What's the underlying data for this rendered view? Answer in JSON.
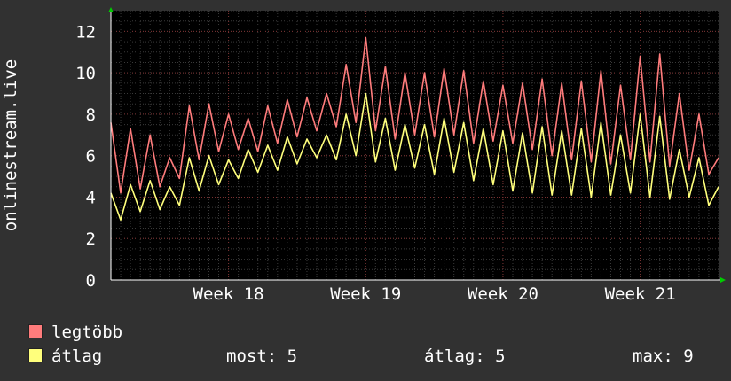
{
  "chart_data": {
    "type": "line",
    "ylabel": "onlinestream.live",
    "ylim": [
      0,
      13
    ],
    "yticks": [
      0,
      2,
      4,
      6,
      8,
      10,
      12
    ],
    "xlim": [
      0,
      31
    ],
    "xticks": [
      {
        "label": "Week 18",
        "x": 6
      },
      {
        "label": "Week 19",
        "x": 13
      },
      {
        "label": "Week 20",
        "x": 20
      },
      {
        "label": "Week 21",
        "x": 27
      }
    ],
    "grid": true,
    "series": [
      {
        "name": "legtöbb",
        "color": "#ff7c7c",
        "x": [
          0,
          0.5,
          1,
          1.5,
          2,
          2.5,
          3,
          3.5,
          4,
          4.5,
          5,
          5.5,
          6,
          6.5,
          7,
          7.5,
          8,
          8.5,
          9,
          9.5,
          10,
          10.5,
          11,
          11.5,
          12,
          12.5,
          13,
          13.5,
          14,
          14.5,
          15,
          15.5,
          16,
          16.5,
          17,
          17.5,
          18,
          18.5,
          19,
          19.5,
          20,
          20.5,
          21,
          21.5,
          22,
          22.5,
          23,
          23.5,
          24,
          24.5,
          25,
          25.5,
          26,
          26.5,
          27,
          27.5,
          28,
          28.5,
          29,
          29.5,
          30,
          30.5,
          31
        ],
        "values": [
          7.6,
          4.2,
          7.3,
          4.4,
          7.0,
          4.5,
          5.9,
          4.9,
          8.4,
          5.8,
          8.5,
          6.2,
          8.0,
          6.3,
          7.8,
          6.2,
          8.4,
          6.6,
          8.7,
          6.9,
          8.8,
          7.2,
          9.0,
          7.4,
          10.4,
          7.6,
          11.7,
          7.2,
          10.3,
          6.8,
          10.0,
          7.0,
          10.0,
          6.9,
          10.2,
          7.0,
          10.1,
          6.6,
          9.6,
          6.7,
          9.4,
          6.6,
          9.5,
          6.3,
          9.7,
          6.0,
          9.5,
          5.8,
          9.6,
          5.7,
          10.1,
          5.6,
          9.4,
          5.8,
          10.8,
          5.7,
          10.9,
          5.5,
          9.0,
          5.3,
          8.0,
          5.1,
          5.9
        ]
      },
      {
        "name": "átlag",
        "color": "#ffff7c",
        "x": [
          0,
          0.5,
          1,
          1.5,
          2,
          2.5,
          3,
          3.5,
          4,
          4.5,
          5,
          5.5,
          6,
          6.5,
          7,
          7.5,
          8,
          8.5,
          9,
          9.5,
          10,
          10.5,
          11,
          11.5,
          12,
          12.5,
          13,
          13.5,
          14,
          14.5,
          15,
          15.5,
          16,
          16.5,
          17,
          17.5,
          18,
          18.5,
          19,
          19.5,
          20,
          20.5,
          21,
          21.5,
          22,
          22.5,
          23,
          23.5,
          24,
          24.5,
          25,
          25.5,
          26,
          26.5,
          27,
          27.5,
          28,
          28.5,
          29,
          29.5,
          30,
          30.5,
          31
        ],
        "values": [
          4.2,
          2.9,
          4.6,
          3.3,
          4.8,
          3.4,
          4.5,
          3.6,
          5.9,
          4.3,
          6.0,
          4.6,
          5.8,
          4.9,
          6.3,
          5.2,
          6.5,
          5.3,
          6.9,
          5.6,
          6.8,
          5.9,
          7.0,
          5.8,
          8.0,
          6.0,
          9.0,
          5.7,
          7.8,
          5.3,
          7.5,
          5.4,
          7.5,
          5.1,
          7.8,
          5.2,
          7.6,
          4.8,
          7.3,
          4.6,
          7.2,
          4.3,
          7.1,
          4.2,
          7.4,
          4.1,
          7.2,
          4.1,
          7.3,
          4.0,
          7.6,
          4.1,
          7.0,
          4.2,
          8.0,
          4.0,
          7.9,
          3.9,
          6.3,
          4.0,
          5.9,
          3.6,
          4.5
        ]
      }
    ]
  },
  "legend": {
    "max_label": "legtöbb",
    "avg_label": "átlag",
    "max_color": "#ff7c7c",
    "avg_color": "#ffff7c"
  },
  "stats": {
    "now": "most: 5",
    "avg": "átlag: 5",
    "max": "max: 9"
  }
}
